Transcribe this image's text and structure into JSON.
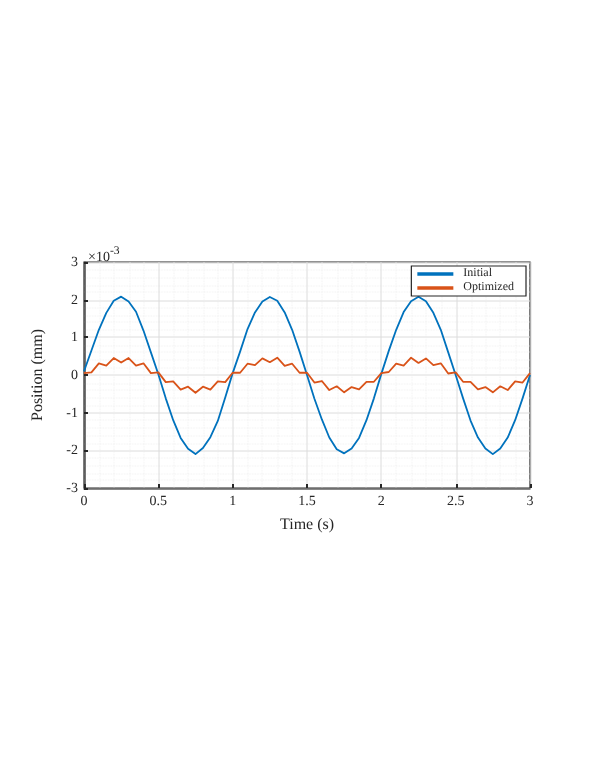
{
  "chart_data": {
    "type": "line",
    "xlabel": "Time (s)",
    "ylabel": "Position (mm)",
    "annotations": [
      "×10$^{-3}$"
    ],
    "x": [
      0,
      0.05,
      0.1,
      0.15,
      0.2,
      0.25,
      0.3,
      0.35,
      0.4,
      0.45,
      0.5,
      0.55,
      0.6,
      0.65,
      0.7,
      0.75,
      0.8,
      0.85,
      0.9,
      0.95,
      1,
      1.05,
      1.1,
      1.15,
      1.2,
      1.25,
      1.3,
      1.35,
      1.4,
      1.45,
      1.5,
      1.55,
      1.6,
      1.65,
      1.7,
      1.75,
      1.8,
      1.85,
      1.9,
      1.95,
      2,
      2.05,
      2.1,
      2.15,
      2.2,
      2.25,
      2.3,
      2.35,
      2.4,
      2.45,
      2.5,
      2.55,
      2.6,
      2.65,
      2.7,
      2.75,
      2.8,
      2.85,
      2.9,
      2.95,
      3
    ],
    "series": [
      {
        "name": "Initial",
        "color": "#0072bd",
        "values": [
          0.1,
          0.65,
          1.2,
          1.65,
          1.97,
          2.08,
          1.95,
          1.68,
          1.18,
          0.6,
          0.02,
          -0.62,
          -1.2,
          -1.67,
          -1.96,
          -2.1,
          -1.94,
          -1.65,
          -1.22,
          -0.6,
          0.05,
          0.62,
          1.22,
          1.66,
          1.95,
          2.07,
          1.97,
          1.66,
          1.2,
          0.62,
          0,
          -0.63,
          -1.18,
          -1.66,
          -1.97,
          -2.08,
          -1.95,
          -1.67,
          -1.2,
          -0.62,
          0.03,
          0.64,
          1.2,
          1.67,
          1.96,
          2.08,
          1.96,
          1.65,
          1.2,
          0.6,
          0,
          -0.62,
          -1.21,
          -1.66,
          -1.95,
          -2.1,
          -1.95,
          -1.66,
          -1.2,
          -0.62,
          0
        ]
      },
      {
        "name": "Optimized",
        "color": "#d95319",
        "values": [
          0.05,
          0.07,
          0.31,
          0.25,
          0.45,
          0.33,
          0.45,
          0.25,
          0.31,
          0.05,
          0.07,
          -0.19,
          -0.17,
          -0.39,
          -0.31,
          -0.47,
          -0.31,
          -0.39,
          -0.17,
          -0.19,
          0.06,
          0.06,
          0.3,
          0.26,
          0.44,
          0.34,
          0.46,
          0.24,
          0.3,
          0.06,
          0.06,
          -0.2,
          -0.16,
          -0.4,
          -0.3,
          -0.46,
          -0.32,
          -0.38,
          -0.18,
          -0.18,
          0.05,
          0.08,
          0.3,
          0.25,
          0.46,
          0.32,
          0.44,
          0.26,
          0.31,
          0.04,
          0.07,
          -0.18,
          -0.18,
          -0.38,
          -0.32,
          -0.46,
          -0.3,
          -0.4,
          -0.17,
          -0.2,
          0.05
        ]
      }
    ],
    "xlim": [
      0,
      3
    ],
    "xticks": [
      0,
      0.5,
      1,
      1.5,
      2,
      2.5,
      3
    ],
    "ylim": [
      -3,
      3
    ],
    "yticks": [
      -3,
      -2,
      -1,
      0,
      1,
      2,
      3
    ],
    "grid": true,
    "legend": "top right",
    "marker": "none",
    "line_style": "solid"
  }
}
